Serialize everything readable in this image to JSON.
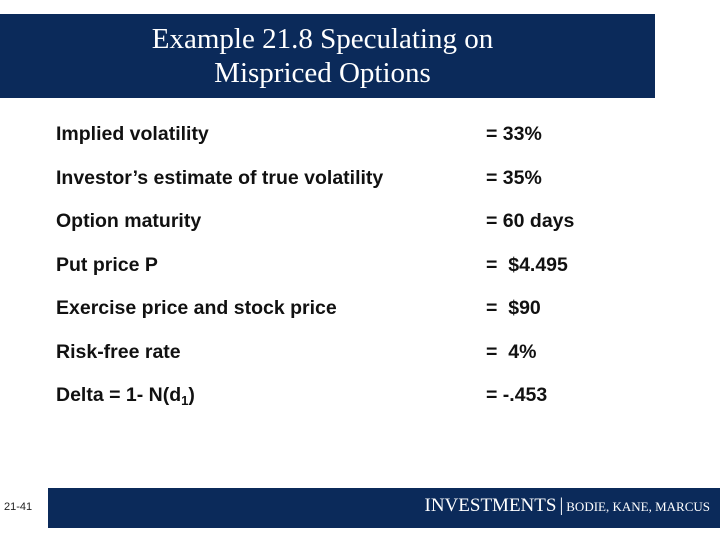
{
  "slide": {
    "title_line1": "Example 21.8 Speculating on",
    "title_line2": "Mispriced Options"
  },
  "rows": [
    {
      "label": "Implied volatility",
      "value": "= 33%"
    },
    {
      "label": "Investor’s estimate of true volatility",
      "value": "= 35%"
    },
    {
      "label": "Option maturity",
      "value": "= 60 days"
    },
    {
      "label": "Put price P",
      "value": "=  $4.495"
    },
    {
      "label": "Exercise price and stock price",
      "value": "=  $90"
    },
    {
      "label": "Risk-free rate",
      "value": "=  4%"
    },
    {
      "label_pre": "Delta = 1- N(d",
      "label_sub": "1",
      "label_post": ")",
      "value": "= -.453"
    }
  ],
  "footer": {
    "page_number": "21-41",
    "brand": "INVESTMENTS",
    "separator": "|",
    "authors": "BODIE, KANE, MARCUS",
    "bar_color": "#0b2a5a"
  }
}
